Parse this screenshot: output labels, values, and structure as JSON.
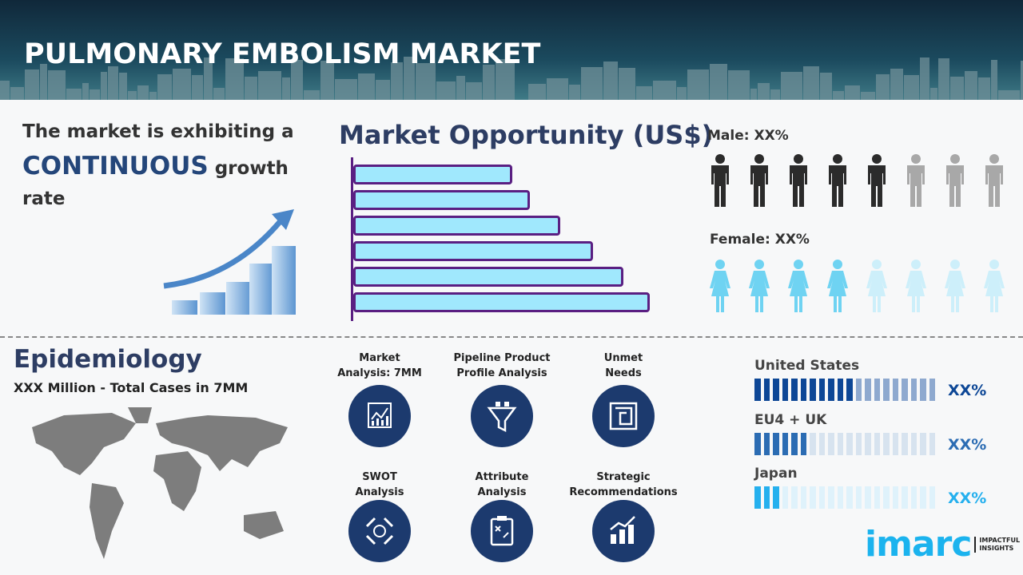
{
  "header": {
    "title": "PULMONARY EMBOLISM MARKET"
  },
  "growth": {
    "line1": "The market is exhibiting a",
    "highlight": "CONTINUOUS",
    "line2_rest": " growth",
    "line3": "rate"
  },
  "market_opportunity": {
    "title": "Market Opportunity (US$)",
    "bar_relative_lengths": [
      53,
      59,
      69,
      80,
      90,
      99
    ],
    "bar_fill": "#a0e8fd",
    "bar_outline": "#5a1f82"
  },
  "gender": {
    "male_label": "Male: XX%",
    "female_label": "Female: XX%",
    "male_highlighted": 5,
    "female_highlighted": 4,
    "total_icons": 8,
    "male_color": "#2b2b2b",
    "male_dim": "#a8a8a8",
    "female_color": "#6fd3f2",
    "female_dim": "#cdeffa"
  },
  "epidemiology": {
    "title": "Epidemiology",
    "subtitle": "XXX Million - Total Cases in 7MM"
  },
  "features": [
    {
      "label": "Market\nAnalysis: 7MM",
      "icon": "chart-analysis-icon"
    },
    {
      "label": "Pipeline Product\nProfile Analysis",
      "icon": "funnel-icon"
    },
    {
      "label": "Unmet\nNeeds",
      "icon": "maze-icon"
    },
    {
      "label": "SWOT\nAnalysis",
      "icon": "swot-arrows-icon"
    },
    {
      "label": "Attribute\nAnalysis",
      "icon": "clipboard-strategy-icon"
    },
    {
      "label": "Strategic\nRecommendations",
      "icon": "growth-bars-icon"
    }
  ],
  "regions": [
    {
      "name": "United States",
      "value": "XX%",
      "filled": 11,
      "total": 20,
      "color": "#0d4796",
      "dim": "#8ea9cf"
    },
    {
      "name": "EU4 + UK",
      "value": "XX%",
      "filled": 6,
      "total": 20,
      "color": "#2b6cb3",
      "dim": "#d7e3ef"
    },
    {
      "name": "Japan",
      "value": "XX%",
      "filled": 3,
      "total": 20,
      "color": "#25b0ee",
      "dim": "#dff2fb"
    }
  ],
  "logo": {
    "text": "imarc",
    "tagline": "IMPACTFUL\nINSIGHTS"
  }
}
